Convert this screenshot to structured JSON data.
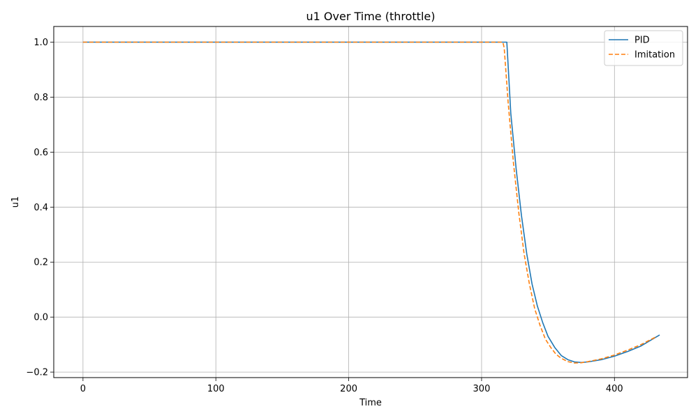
{
  "chart_data": {
    "type": "line",
    "title": "u1 Over Time (throttle)",
    "xlabel": "Time",
    "ylabel": "u1",
    "xlim": [
      -22,
      455
    ],
    "ylim": [
      -0.22,
      1.057
    ],
    "xticks": [
      0,
      100,
      200,
      300,
      400
    ],
    "yticks": [
      -0.2,
      0.0,
      0.2,
      0.4,
      0.6,
      0.8,
      1.0
    ],
    "xtick_labels": [
      "0",
      "100",
      "200",
      "300",
      "400"
    ],
    "ytick_labels": [
      "−0.2",
      "0.0",
      "0.2",
      "0.4",
      "0.6",
      "0.8",
      "1.0"
    ],
    "grid": true,
    "legend_position": "top-right",
    "series": [
      {
        "name": "PID",
        "color": "#1f77b4",
        "style": "solid",
        "x": [
          0,
          100,
          200,
          300,
          318,
          319,
          322,
          326,
          330,
          334,
          338,
          342,
          346,
          350,
          355,
          360,
          365,
          370,
          375,
          380,
          390,
          400,
          410,
          420,
          434
        ],
        "y": [
          1.0,
          1.0,
          1.0,
          1.0,
          1.0,
          1.0,
          0.74,
          0.54,
          0.37,
          0.23,
          0.12,
          0.04,
          -0.02,
          -0.07,
          -0.11,
          -0.14,
          -0.155,
          -0.163,
          -0.165,
          -0.163,
          -0.155,
          -0.142,
          -0.125,
          -0.105,
          -0.065
        ]
      },
      {
        "name": "Imitation",
        "color": "#ff7f0e",
        "style": "dashed",
        "x": [
          0,
          100,
          200,
          300,
          316,
          317,
          320,
          324,
          328,
          332,
          336,
          340,
          344,
          348,
          352,
          356,
          360,
          365,
          370,
          375,
          380,
          390,
          400,
          410,
          420,
          432
        ],
        "y": [
          1.0,
          1.0,
          1.0,
          1.0,
          1.0,
          0.98,
          0.78,
          0.56,
          0.38,
          0.23,
          0.12,
          0.03,
          -0.03,
          -0.08,
          -0.11,
          -0.135,
          -0.15,
          -0.162,
          -0.167,
          -0.166,
          -0.162,
          -0.152,
          -0.138,
          -0.12,
          -0.1,
          -0.07
        ]
      }
    ]
  }
}
